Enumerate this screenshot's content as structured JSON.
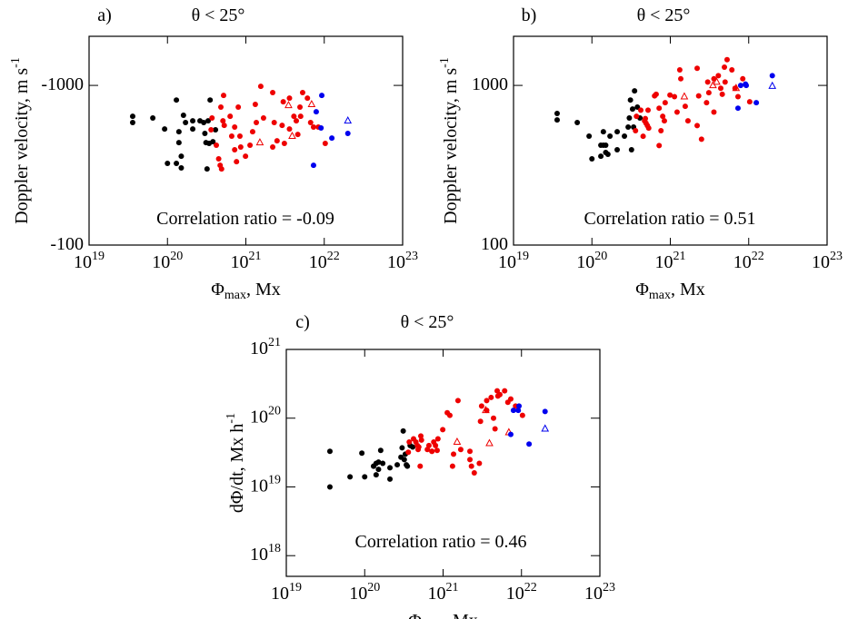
{
  "chart_data": [
    {
      "type": "scatter",
      "label": "a)",
      "title": "θ < 25°",
      "xlabel": "Φ_max, Mx",
      "ylabel": "Doppler velocity, m s^-1",
      "annotation": "Correlation ratio = -0.09",
      "xlog": true,
      "ylog": true,
      "xlim": [
        1e+19,
        1e+23
      ],
      "ylim": [
        -100,
        -2030
      ],
      "xticks": [
        {
          "value": 1e+19,
          "label": "10^19"
        },
        {
          "value": 1e+20,
          "label": "10^20"
        },
        {
          "value": 1e+21,
          "label": "10^21"
        },
        {
          "value": 1e+22,
          "label": "10^22"
        },
        {
          "value": 1e+23,
          "label": "10^23"
        }
      ],
      "yticks": [
        -1000,
        -100
      ],
      "series": [
        {
          "color": "#000000",
          "marker": "dot",
          "x": [
            3.6e+19,
            3.6e+19,
            6.5e+19,
            9.2e+19,
            1.3e+20,
            1.6e+20,
            1.7e+20,
            2.1e+20,
            2.1e+20,
            2.6e+20,
            2.9e+20,
            3e+20,
            3.1e+20,
            3.5e+20,
            3.3e+20,
            1.4e+20,
            1.4e+20,
            1e+20,
            1.3e+20,
            1.5e+20,
            1.5e+20,
            3.2e+20,
            3.8e+20,
            4.1e+20,
            3.4e+20
          ],
          "values": [
            -641,
            -585,
            -625,
            -533,
            -810,
            -650,
            -585,
            -600,
            -533,
            -600,
            -585,
            -500,
            -438,
            -810,
            -600,
            -513,
            -438,
            -325,
            -325,
            -360,
            -304,
            -300,
            -444,
            -527,
            -433
          ]
        },
        {
          "color": "#ee0000",
          "marker": "dot",
          "x": [
            4.8e+20,
            5.2e+20,
            5.1e+20,
            5.3e+20,
            3.7e+20,
            3.6e+20,
            4.2e+20,
            4.5e+20,
            4.7e+20,
            4.9e+20,
            6.3e+20,
            6.6e+20,
            7.2e+20,
            8e+20,
            8.4e+20,
            7.2e+20,
            7.6e+20,
            8.6e+20,
            9.9e+20,
            1.13e+21,
            1.22e+21,
            1.36e+21,
            1.32e+21,
            1.55e+21,
            1.68e+21,
            2.2e+21,
            2.3e+21,
            2.5e+21,
            2.2e+21,
            3e+21,
            2.9e+21,
            3.1e+21,
            3.6e+21,
            4.1e+21,
            4.4e+21,
            4.6e+21,
            3.6e+21,
            4.9e+21,
            5e+21,
            5.3e+21,
            6.1e+21,
            6.7e+21,
            7.3e+21,
            8.4e+21,
            1.03e+22
          ],
          "values": [
            -731,
            -866,
            -600,
            -562,
            -625,
            -527,
            -422,
            -347,
            -316,
            -300,
            -641,
            -481,
            -548,
            -731,
            -481,
            -395,
            -333,
            -411,
            -360,
            -422,
            -513,
            -585,
            -760,
            -987,
            -625,
            -901,
            -585,
            -450,
            -411,
            -790,
            -562,
            -433,
            -533,
            -641,
            -600,
            -493,
            -832,
            -731,
            -641,
            -901,
            -832,
            -585,
            -548,
            -548,
            -433
          ]
        },
        {
          "color": "#ee0000",
          "marker": "triangle",
          "x": [
            1.51e+21,
            3.5e+21,
            3.9e+21,
            6.9e+21
          ],
          "values": [
            -438,
            -750,
            -481,
            -760
          ]
        },
        {
          "color": "#0000ee",
          "marker": "dot",
          "x": [
            9.3e+21,
            7.9e+21,
            9.1e+21,
            1.25e+22,
            7.3e+21,
            2e+22
          ],
          "values": [
            -866,
            -684,
            -541,
            -468,
            -316,
            -500
          ]
        },
        {
          "color": "#0000ee",
          "marker": "triangle",
          "x": [
            2e+22
          ],
          "values": [
            -600
          ]
        }
      ]
    },
    {
      "type": "scatter",
      "label": "b)",
      "title": "θ < 25°",
      "xlabel": "Φ_max, Mx",
      "ylabel": "Doppler velocity, m s^-1",
      "annotation": "Correlation ratio = 0.51",
      "xlog": true,
      "ylog": true,
      "xlim": [
        1e+19,
        1e+23
      ],
      "ylim": [
        100,
        2030
      ],
      "xticks": [
        {
          "value": 1e+19,
          "label": "10^19"
        },
        {
          "value": 1e+20,
          "label": "10^20"
        },
        {
          "value": 1e+21,
          "label": "10^21"
        },
        {
          "value": 1e+22,
          "label": "10^22"
        },
        {
          "value": 1e+23,
          "label": "10^23"
        }
      ],
      "yticks": [
        1000,
        100
      ],
      "series": [
        {
          "color": "#000000",
          "marker": "dot",
          "x": [
            3.6e+19,
            3.6e+19,
            6.5e+19,
            9.2e+19,
            1.3e+20,
            1.6e+20,
            1.7e+20,
            2.1e+20,
            2.1e+20,
            2.6e+20,
            2.9e+20,
            3e+20,
            3.1e+20,
            3.5e+20,
            3.3e+20,
            1.4e+20,
            1.4e+20,
            1e+20,
            1.3e+20,
            1.5e+20,
            1.5e+20,
            3.2e+20,
            3.8e+20,
            4.1e+20,
            3.4e+20
          ],
          "values": [
            667,
            608,
            585,
            481,
            422,
            370,
            481,
            395,
            513,
            481,
            548,
            625,
            810,
            924,
            711,
            422,
            513,
            347,
            360,
            422,
            380,
            395,
            731,
            625,
            548
          ]
        },
        {
          "color": "#ee0000",
          "marker": "dot",
          "x": [
            4.8e+20,
            5.2e+20,
            5.1e+20,
            5.3e+20,
            3.7e+20,
            3.6e+20,
            4.2e+20,
            4.5e+20,
            4.7e+20,
            4.9e+20,
            6.3e+20,
            6.6e+20,
            7.2e+20,
            8e+20,
            8.4e+20,
            7.2e+20,
            7.6e+20,
            8.6e+20,
            9.9e+20,
            1.13e+21,
            1.22e+21,
            1.36e+21,
            1.32e+21,
            1.55e+21,
            1.68e+21,
            2.2e+21,
            2.3e+21,
            2.5e+21,
            2.2e+21,
            3e+21,
            2.9e+21,
            3.1e+21,
            3.6e+21,
            4.1e+21,
            4.4e+21,
            4.6e+21,
            3.6e+21,
            4.9e+21,
            5e+21,
            5.3e+21,
            6.1e+21,
            6.7e+21,
            7.3e+21,
            8.4e+21,
            1.03e+22
          ],
          "values": [
            620,
            700,
            560,
            540,
            640,
            520,
            700,
            480,
            600,
            580,
            860,
            880,
            720,
            640,
            600,
            420,
            520,
            780,
            870,
            850,
            680,
            1100,
            1250,
            740,
            600,
            1280,
            860,
            460,
            560,
            1050,
            780,
            900,
            680,
            1150,
            960,
            880,
            1100,
            1300,
            1050,
            1450,
            1250,
            960,
            850,
            1100,
            790
          ]
        },
        {
          "color": "#ee0000",
          "marker": "triangle",
          "x": [
            1.51e+21,
            3.5e+21,
            3.9e+21,
            6.9e+21
          ],
          "values": [
            850,
            1000,
            1050,
            960
          ]
        },
        {
          "color": "#0000ee",
          "marker": "dot",
          "x": [
            9.3e+21,
            7.9e+21,
            9.1e+21,
            1.25e+22,
            7.3e+21,
            2e+22
          ],
          "values": [
            1000,
            1000,
            1020,
            780,
            720,
            1150
          ]
        },
        {
          "color": "#0000ee",
          "marker": "triangle",
          "x": [
            2e+22
          ],
          "values": [
            990
          ]
        }
      ]
    },
    {
      "type": "scatter",
      "label": "c)",
      "title": "θ < 25°",
      "xlabel": "Φ_max, Mx",
      "ylabel": "dΦ/dt, Mx h^-1",
      "annotation": "Correlation ratio = 0.46",
      "xlog": true,
      "ylog": true,
      "xlim": [
        1e+19,
        1e+23
      ],
      "ylim": [
        5e+17,
        1e+21
      ],
      "xticks": [
        {
          "value": 1e+19,
          "label": "10^19"
        },
        {
          "value": 1e+20,
          "label": "10^20"
        },
        {
          "value": 1e+21,
          "label": "10^21"
        },
        {
          "value": 1e+22,
          "label": "10^22"
        },
        {
          "value": 1e+23,
          "label": "10^23"
        }
      ],
      "yticks": [
        {
          "value": 1e+18,
          "label": "10^18"
        },
        {
          "value": 1e+19,
          "label": "10^19"
        },
        {
          "value": 1e+20,
          "label": "10^20"
        },
        {
          "value": 1e+21,
          "label": "10^21"
        }
      ],
      "series": [
        {
          "color": "#000000",
          "marker": "dot",
          "x": [
            3.6e+19,
            3.6e+19,
            6.5e+19,
            9.2e+19,
            1.3e+20,
            1.6e+20,
            1.7e+20,
            2.1e+20,
            2.1e+20,
            2.6e+20,
            2.9e+20,
            3e+20,
            3.1e+20,
            3.5e+20,
            3.3e+20,
            1.4e+20,
            1.4e+20,
            1e+20,
            1.3e+20,
            1.5e+20,
            1.5e+20,
            3.2e+20,
            3.8e+20,
            4.1e+20,
            3.4e+20
          ],
          "values": [
            3.3e+19,
            1e+19,
            1.4e+19,
            3.1e+19,
            2e+19,
            3.4e+19,
            2.2e+19,
            1.9e+19,
            1.3e+19,
            2.1e+19,
            2.7e+19,
            3.7e+19,
            6.5e+19,
            2e+19,
            3e+19,
            2.2e+19,
            1.5e+19,
            1.4e+19,
            2e+19,
            2.3e+19,
            1.8e+19,
            2.5e+19,
            4e+19,
            3.8e+19,
            2.1e+19
          ]
        },
        {
          "color": "#ee0000",
          "marker": "dot",
          "x": [
            4.8e+20,
            5.2e+20,
            5.1e+20,
            5.3e+20,
            3.7e+20,
            3.6e+20,
            4.2e+20,
            4.5e+20,
            4.7e+20,
            4.9e+20,
            6.3e+20,
            6.6e+20,
            7.2e+20,
            8e+20,
            8.4e+20,
            7.2e+20,
            7.6e+20,
            8.6e+20,
            9.9e+20,
            1.13e+21,
            1.22e+21,
            1.36e+21,
            1.32e+21,
            1.55e+21,
            1.68e+21,
            2.2e+21,
            2.3e+21,
            2.5e+21,
            2.2e+21,
            3e+21,
            2.9e+21,
            3.1e+21,
            3.6e+21,
            4.1e+21,
            4.4e+21,
            4.6e+21,
            3.6e+21,
            4.9e+21,
            5e+21,
            5.3e+21,
            6.1e+21,
            6.7e+21,
            7.3e+21,
            8.4e+21,
            1.03e+22
          ],
          "values": [
            3.5e+19,
            5.5e+19,
            2e+19,
            4.8e+19,
            4.5e+19,
            3.2e+19,
            5e+19,
            4.5e+19,
            4e+19,
            3.8e+19,
            3.5e+19,
            4e+19,
            3.3e+19,
            4e+19,
            3.4e+19,
            3.3e+19,
            4.5e+19,
            5e+19,
            6.8e+19,
            1.2e+20,
            1.1e+20,
            3e+19,
            2e+19,
            1.8e+20,
            3.5e+19,
            2.5e+19,
            2e+19,
            1.6e+19,
            3.3e+19,
            9e+19,
            2.2e+19,
            1.5e+20,
            1.3e+20,
            2e+20,
            1e+20,
            7e+19,
            1.8e+20,
            2.5e+20,
            2.1e+20,
            2.2e+20,
            2.5e+20,
            1.7e+20,
            1.9e+20,
            1.5e+20,
            1.1e+20
          ]
        },
        {
          "color": "#ee0000",
          "marker": "triangle",
          "x": [
            1.51e+21,
            3.5e+21,
            3.9e+21,
            6.9e+21
          ],
          "values": [
            4.5e+19,
            1.3e+20,
            4.3e+19,
            6.2e+19
          ]
        },
        {
          "color": "#0000ee",
          "marker": "dot",
          "x": [
            9.3e+21,
            7.9e+21,
            9.1e+21,
            1.25e+22,
            7.3e+21,
            2e+22
          ],
          "values": [
            1.5e+20,
            1.3e+20,
            1.3e+20,
            4.2e+19,
            5.8e+19,
            1.25e+20
          ]
        },
        {
          "color": "#0000ee",
          "marker": "triangle",
          "x": [
            2e+22
          ],
          "values": [
            7e+19
          ]
        }
      ]
    }
  ]
}
